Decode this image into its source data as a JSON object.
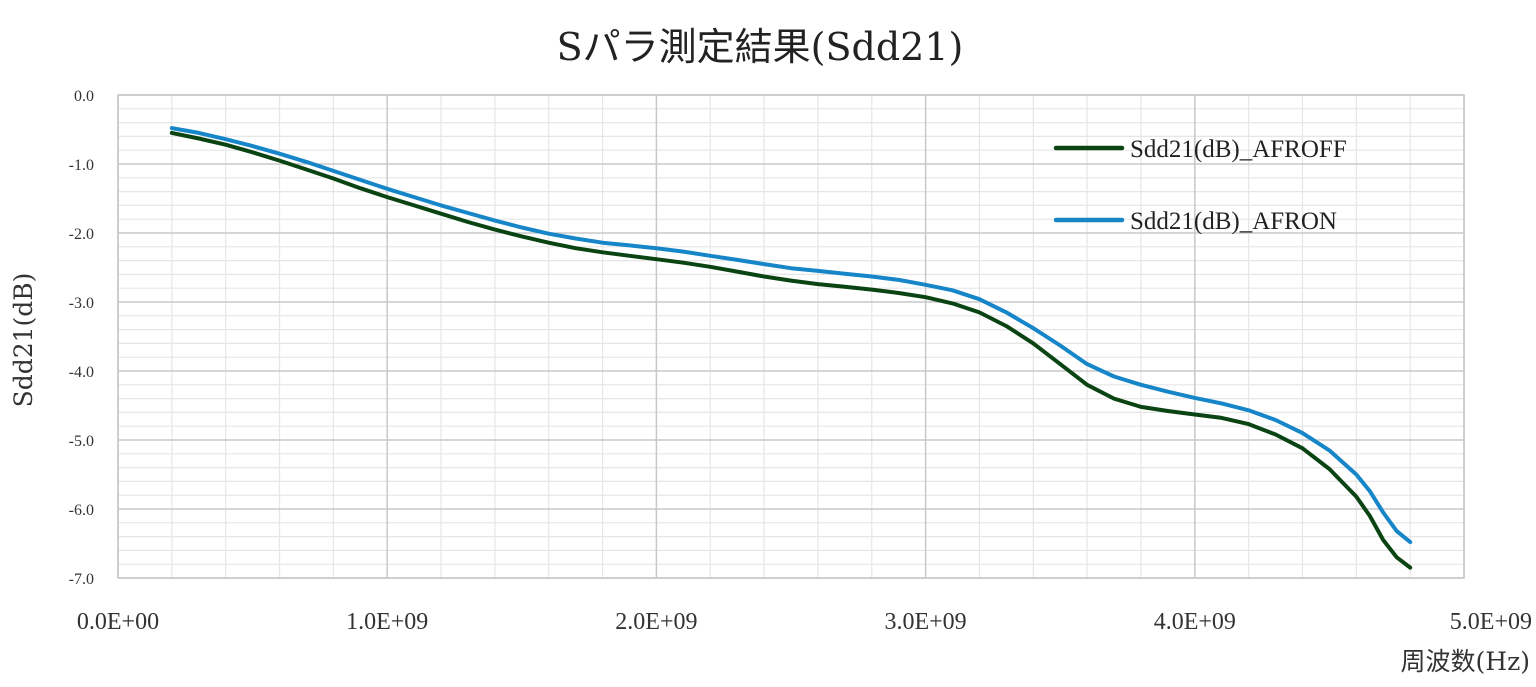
{
  "chart_data": {
    "type": "line",
    "title": "Sパラ測定結果(Sdd21)",
    "xlabel": "周波数(Hz)",
    "ylabel": "Sdd21(dB)",
    "xlim": [
      0,
      5000000000
    ],
    "ylim": [
      -7.0,
      0.0
    ],
    "x_ticks": [
      0,
      1000000000,
      2000000000,
      3000000000,
      4000000000,
      5000000000
    ],
    "x_tick_labels": [
      "0.0E+00",
      "1.0E+09",
      "2.0E+09",
      "3.0E+09",
      "4.0E+09",
      "5.0E+09"
    ],
    "y_ticks": [
      0,
      -1,
      -2,
      -3,
      -4,
      -5,
      -6,
      -7
    ],
    "y_tick_labels": [
      "0.0",
      "-1.0",
      "-2.0",
      "-3.0",
      "-4.0",
      "-5.0",
      "-6.0",
      "-7.0"
    ],
    "grid": true,
    "legend_position": "top-right",
    "x": [
      200000000,
      300000000,
      400000000,
      500000000,
      600000000,
      700000000,
      800000000,
      900000000,
      1000000000,
      1100000000,
      1200000000,
      1300000000,
      1400000000,
      1500000000,
      1600000000,
      1700000000,
      1800000000,
      1900000000,
      2000000000,
      2100000000,
      2200000000,
      2300000000,
      2400000000,
      2500000000,
      2600000000,
      2700000000,
      2800000000,
      2900000000,
      3000000000,
      3100000000,
      3200000000,
      3300000000,
      3400000000,
      3500000000,
      3600000000,
      3700000000,
      3800000000,
      3900000000,
      4000000000,
      4100000000,
      4200000000,
      4300000000,
      4400000000,
      4500000000,
      4600000000,
      4650000000,
      4700000000,
      4750000000,
      4800000000
    ],
    "series": [
      {
        "name": "Sdd21(dB)_AFROFF",
        "color": "#0b4413",
        "values": [
          -0.55,
          -0.63,
          -0.72,
          -0.83,
          -0.95,
          -1.08,
          -1.21,
          -1.35,
          -1.48,
          -1.6,
          -1.72,
          -1.84,
          -1.95,
          -2.05,
          -2.14,
          -2.22,
          -2.28,
          -2.33,
          -2.38,
          -2.43,
          -2.49,
          -2.56,
          -2.63,
          -2.69,
          -2.74,
          -2.78,
          -2.82,
          -2.87,
          -2.93,
          -3.02,
          -3.15,
          -3.35,
          -3.6,
          -3.9,
          -4.2,
          -4.4,
          -4.52,
          -4.58,
          -4.63,
          -4.68,
          -4.77,
          -4.92,
          -5.12,
          -5.42,
          -5.82,
          -6.1,
          -6.45,
          -6.7,
          -6.85
        ]
      },
      {
        "name": "Sdd21(dB)_AFRON",
        "color": "#1686c8",
        "values": [
          -0.48,
          -0.55,
          -0.64,
          -0.74,
          -0.85,
          -0.97,
          -1.1,
          -1.23,
          -1.36,
          -1.48,
          -1.6,
          -1.71,
          -1.82,
          -1.92,
          -2.01,
          -2.08,
          -2.14,
          -2.18,
          -2.22,
          -2.27,
          -2.33,
          -2.39,
          -2.45,
          -2.51,
          -2.55,
          -2.59,
          -2.63,
          -2.68,
          -2.75,
          -2.83,
          -2.96,
          -3.15,
          -3.38,
          -3.63,
          -3.9,
          -4.08,
          -4.2,
          -4.3,
          -4.39,
          -4.47,
          -4.57,
          -4.71,
          -4.9,
          -5.15,
          -5.5,
          -5.74,
          -6.05,
          -6.32,
          -6.48
        ]
      }
    ]
  }
}
